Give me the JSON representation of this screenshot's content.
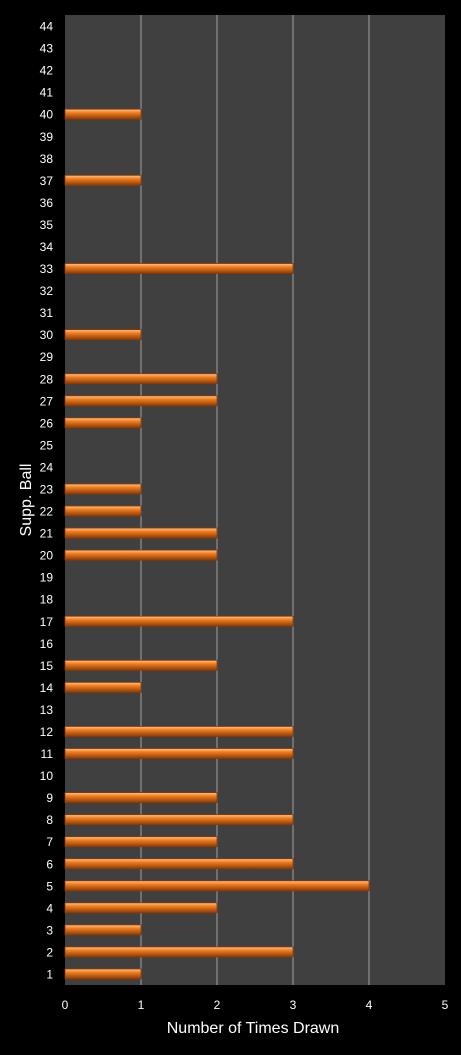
{
  "chart_data": {
    "type": "bar",
    "orientation": "horizontal",
    "title": "",
    "xlabel": "Number of Times Drawn",
    "ylabel": "Supp. Ball",
    "xlim": [
      0,
      5
    ],
    "xticks": [
      0,
      1,
      2,
      3,
      4,
      5
    ],
    "grid": true,
    "legend": "none",
    "colors": {
      "bar": "#f07d1e",
      "bar_highlight": "#ffc48a",
      "bar_shadow": "#8a3a05",
      "plot_bg": "#404040",
      "grid": "#a0a0a0",
      "text": "#ffffff"
    },
    "categories": [
      "1",
      "2",
      "3",
      "4",
      "5",
      "6",
      "7",
      "8",
      "9",
      "10",
      "11",
      "12",
      "13",
      "14",
      "15",
      "16",
      "17",
      "18",
      "19",
      "20",
      "21",
      "22",
      "23",
      "24",
      "25",
      "26",
      "27",
      "28",
      "29",
      "30",
      "31",
      "32",
      "33",
      "34",
      "35",
      "36",
      "37",
      "38",
      "39",
      "40",
      "41",
      "42",
      "43",
      "44"
    ],
    "values": [
      1,
      3,
      1,
      2,
      4,
      3,
      2,
      3,
      2,
      0,
      3,
      3,
      0,
      1,
      2,
      0,
      3,
      0,
      0,
      2,
      2,
      1,
      1,
      0,
      0,
      1,
      2,
      2,
      0,
      1,
      0,
      0,
      3,
      0,
      0,
      0,
      1,
      0,
      0,
      1,
      0,
      0,
      0,
      0
    ]
  }
}
